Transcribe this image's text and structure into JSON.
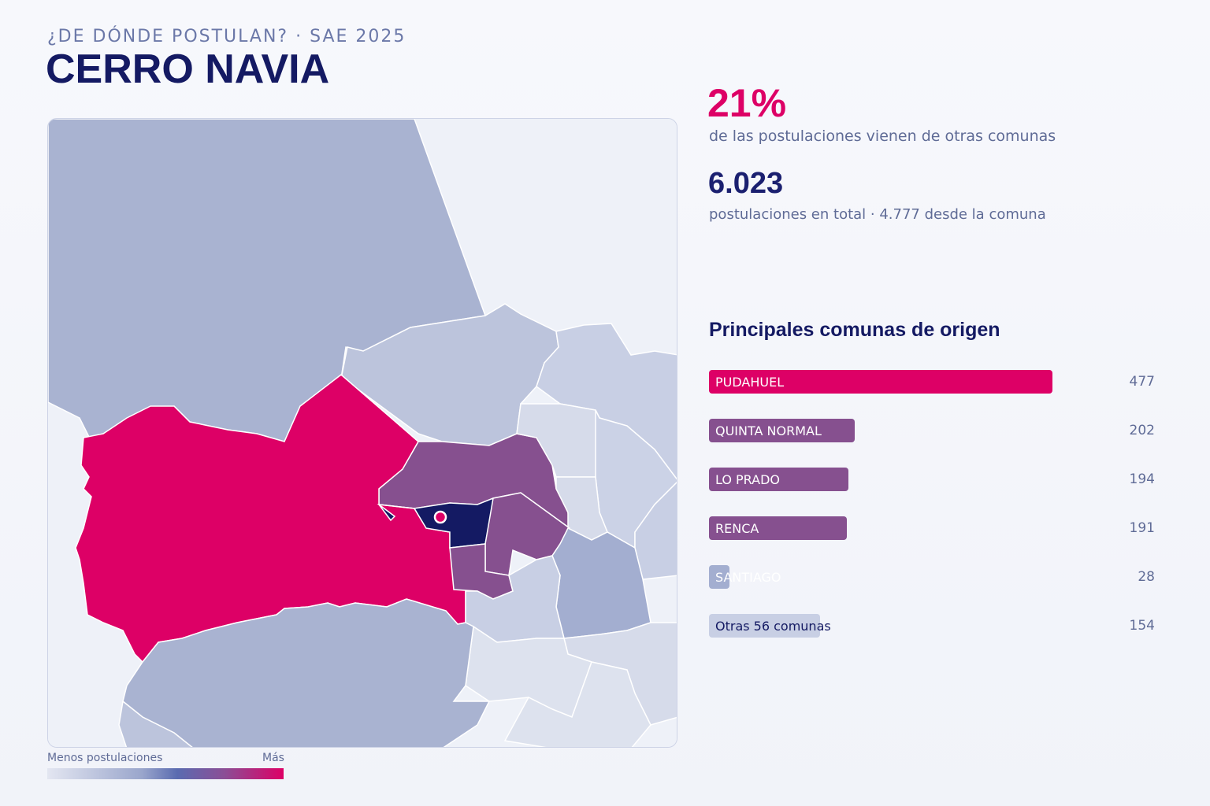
{
  "header": {
    "eyebrow": "¿DE DÓNDE POSTULAN? · SAE 2025",
    "title": "CERRO NAVIA"
  },
  "stats": {
    "external_share": "21%",
    "external_share_desc": "de las postulaciones vienen de otras comunas",
    "total": "6.023",
    "total_desc": "postulaciones en total · 4.777 desde la comuna"
  },
  "ranking": {
    "title": "Principales comunas de origen",
    "max_value": 477,
    "items": [
      {
        "label": "PUDAHUEL",
        "value": 477,
        "display": "477",
        "color": "#dd0066",
        "text_color": "#ffffff"
      },
      {
        "label": "QUINTA NORMAL",
        "value": 202,
        "display": "202",
        "color": "#86508f",
        "text_color": "#ffffff"
      },
      {
        "label": "LO PRADO",
        "value": 194,
        "display": "194",
        "color": "#86508f",
        "text_color": "#ffffff"
      },
      {
        "label": "RENCA",
        "value": 191,
        "display": "191",
        "color": "#86508f",
        "text_color": "#ffffff"
      },
      {
        "label": "SANTIAGO",
        "value": 28,
        "display": "28",
        "color": "#a3aed0",
        "text_color": "#ffffff"
      },
      {
        "label": "Otras 56 comunas",
        "value": 154,
        "display": "154",
        "color": "#c8cfe4",
        "text_color": "#141a63"
      }
    ]
  },
  "legend": {
    "low": "Menos postulaciones",
    "high": "Más"
  },
  "map": {
    "highlight_color": "#141a63",
    "colors": {
      "high": "#dd0066",
      "mid": "#86508f",
      "low": "#a3aed0",
      "lower": "#bcc4dc",
      "lowest": "#dde2ee"
    }
  }
}
